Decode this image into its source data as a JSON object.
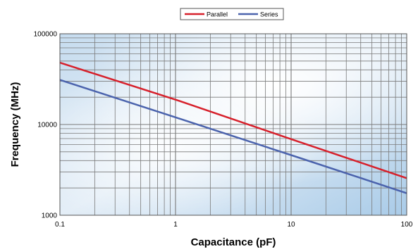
{
  "chart_data": {
    "type": "line",
    "title": "",
    "xlabel": "Capacitance (pF)",
    "ylabel": "Frequency (MHz)",
    "x_scale": "log",
    "y_scale": "log",
    "xlim": [
      0.1,
      100
    ],
    "ylim": [
      1000,
      100000
    ],
    "x_ticks": [
      "0.1",
      "1",
      "10",
      "100"
    ],
    "y_ticks": [
      "1000",
      "10000",
      "100000"
    ],
    "grid": true,
    "legend_position": "top-center",
    "series": [
      {
        "name": "Parallel",
        "color": "#d7202b",
        "x": [
          0.1,
          1,
          10,
          100
        ],
        "y": [
          48000,
          18800,
          6900,
          2560
        ]
      },
      {
        "name": "Series",
        "color": "#4b63ad",
        "x": [
          0.1,
          1,
          10,
          100
        ],
        "y": [
          31000,
          12000,
          4600,
          1750
        ]
      }
    ]
  }
}
